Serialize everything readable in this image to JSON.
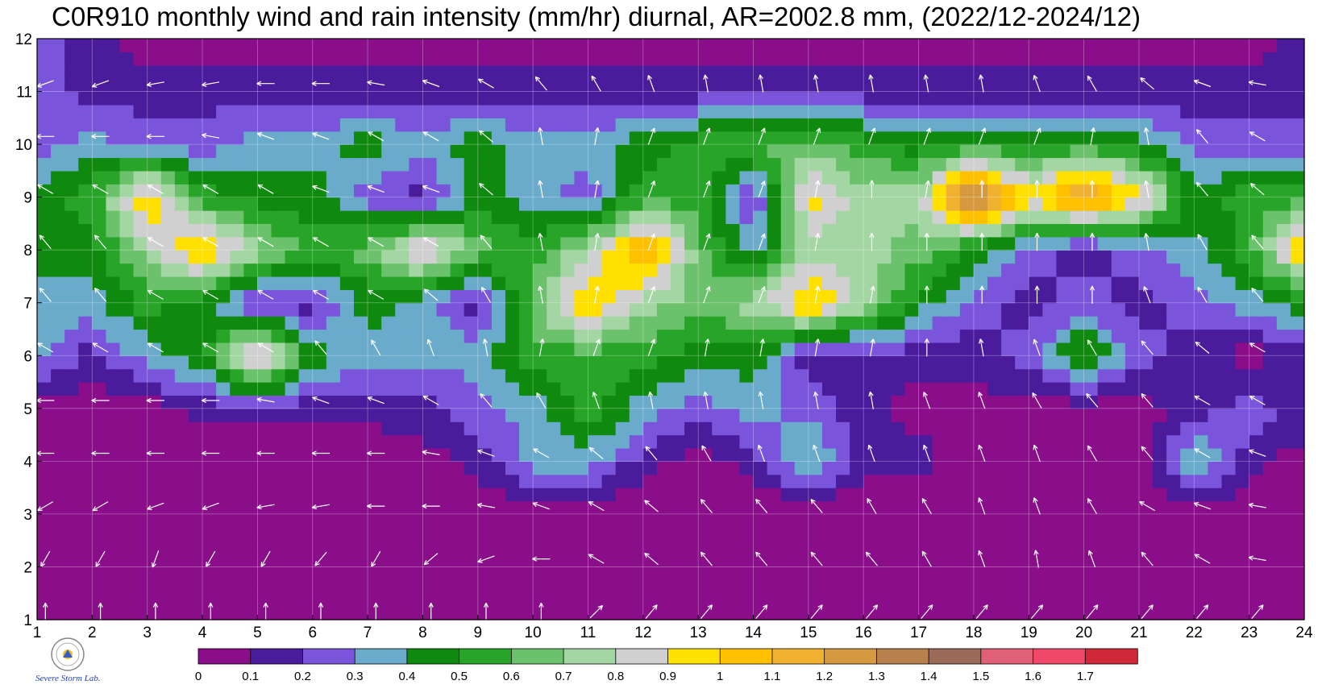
{
  "chart_data": {
    "type": "heatmap",
    "title": "C0R910 monthly wind and rain intensity (mm/hr) diurnal, AR=2002.8 mm, (2022/12-2024/12)",
    "xlabel": "",
    "ylabel": "",
    "x_range": [
      1,
      24
    ],
    "y_range": [
      1,
      12
    ],
    "x_ticks": [
      1,
      2,
      3,
      4,
      5,
      6,
      7,
      8,
      9,
      10,
      11,
      12,
      13,
      14,
      15,
      16,
      17,
      18,
      19,
      20,
      21,
      22,
      23,
      24
    ],
    "y_ticks": [
      1,
      2,
      3,
      4,
      5,
      6,
      7,
      8,
      9,
      10,
      11,
      12
    ],
    "grid": true,
    "colorbar": {
      "position": "bottom",
      "levels": [
        "0",
        "0.1",
        "0.2",
        "0.3",
        "0.4",
        "0.5",
        "0.6",
        "0.7",
        "0.8",
        "0.9",
        "1",
        "1.1",
        "1.2",
        "1.3",
        "1.4",
        "1.5",
        "1.6",
        "1.7"
      ],
      "colors": [
        "#8a0e8a",
        "#4a1c9c",
        "#7a55dc",
        "#6aabcc",
        "#0f8a0f",
        "#28a428",
        "#6cc26c",
        "#a4d6a4",
        "#d0d0d0",
        "#ffe000",
        "#ffc000",
        "#f0b030",
        "#d59a40",
        "#b8804c",
        "#9c6a58",
        "#e06078",
        "#f04868",
        "#d02838"
      ]
    },
    "rain_intensity": [
      [
        0.0,
        0.0,
        0.0,
        0.0,
        0.0,
        0.0,
        0.0,
        0.0,
        0.0,
        0.0,
        0.0,
        0.0,
        0.0,
        0.0,
        0.0,
        0.0,
        0.0,
        0.0,
        0.0,
        0.0,
        0.0,
        0.0,
        0.0,
        0.0
      ],
      [
        0.0,
        0.0,
        0.0,
        0.0,
        0.0,
        0.0,
        0.0,
        0.0,
        0.0,
        0.0,
        0.0,
        0.0,
        0.0,
        0.0,
        0.0,
        0.0,
        0.0,
        0.0,
        0.0,
        0.0,
        0.0,
        0.0,
        0.0,
        0.0
      ],
      [
        0.0,
        0.0,
        0.0,
        0.0,
        0.0,
        0.0,
        0.0,
        0.0,
        0.0,
        0.05,
        0.0,
        0.0,
        0.0,
        0.0,
        0.0,
        0.0,
        0.0,
        0.0,
        0.0,
        0.0,
        0.0,
        0.05,
        0.0,
        0.0
      ],
      [
        0.0,
        0.0,
        0.0,
        0.0,
        0.0,
        0.0,
        0.0,
        0.05,
        0.15,
        0.35,
        0.35,
        0.15,
        0.05,
        0.15,
        0.45,
        0.15,
        0.15,
        0.0,
        0.0,
        0.0,
        0.0,
        0.45,
        0.15,
        0.05
      ],
      [
        0.05,
        0.05,
        0.05,
        0.15,
        0.15,
        0.15,
        0.15,
        0.15,
        0.25,
        0.35,
        0.55,
        0.35,
        0.25,
        0.35,
        0.25,
        0.15,
        0.05,
        0.05,
        0.05,
        0.05,
        0.05,
        0.15,
        0.25,
        0.15
      ],
      [
        0.35,
        0.15,
        0.35,
        0.45,
        1.05,
        0.45,
        0.35,
        0.35,
        0.35,
        0.55,
        0.55,
        0.55,
        0.45,
        0.45,
        0.15,
        0.15,
        0.15,
        0.15,
        0.25,
        0.55,
        0.25,
        0.15,
        0.05,
        0.15
      ],
      [
        0.35,
        0.35,
        0.55,
        0.45,
        0.15,
        0.15,
        0.45,
        0.35,
        0.15,
        0.65,
        1.05,
        0.75,
        0.65,
        0.75,
        1.05,
        0.75,
        0.45,
        0.25,
        0.15,
        0.25,
        0.15,
        0.25,
        0.35,
        0.45
      ],
      [
        0.45,
        0.45,
        0.75,
        1.05,
        0.75,
        0.55,
        0.65,
        0.95,
        0.65,
        0.55,
        0.75,
        1.15,
        0.65,
        0.35,
        0.75,
        0.75,
        0.65,
        0.45,
        0.25,
        0.15,
        0.25,
        0.35,
        0.55,
        1.05
      ],
      [
        0.45,
        0.55,
        1.05,
        0.55,
        0.45,
        0.45,
        0.25,
        0.15,
        0.45,
        0.35,
        0.25,
        0.55,
        0.55,
        0.15,
        0.95,
        0.75,
        0.75,
        1.45,
        0.95,
        1.25,
        0.95,
        0.45,
        0.55,
        0.55
      ],
      [
        0.25,
        0.35,
        0.25,
        0.25,
        0.35,
        0.35,
        0.45,
        0.35,
        0.45,
        0.35,
        0.35,
        0.45,
        0.55,
        0.65,
        0.65,
        0.55,
        0.45,
        0.55,
        0.45,
        0.55,
        0.45,
        0.25,
        0.25,
        0.25
      ],
      [
        0.25,
        0.15,
        0.15,
        0.15,
        0.15,
        0.15,
        0.15,
        0.15,
        0.15,
        0.15,
        0.15,
        0.15,
        0.15,
        0.15,
        0.15,
        0.15,
        0.15,
        0.15,
        0.15,
        0.15,
        0.15,
        0.15,
        0.15,
        0.15
      ],
      [
        0.25,
        0.15,
        0.05,
        0.05,
        0.05,
        0.05,
        0.05,
        0.05,
        0.05,
        0.05,
        0.05,
        0.05,
        0.05,
        0.05,
        0.05,
        0.05,
        0.05,
        0.05,
        0.05,
        0.05,
        0.05,
        0.05,
        0.05,
        0.15
      ]
    ],
    "wind_direction_deg": [
      [
        0,
        0,
        0,
        0,
        0,
        0,
        0,
        0,
        0,
        0,
        45,
        40,
        40,
        40,
        40,
        40,
        40,
        40,
        40,
        40,
        40,
        40,
        40,
        40
      ],
      [
        210,
        210,
        200,
        210,
        210,
        220,
        210,
        230,
        250,
        270,
        300,
        310,
        320,
        320,
        320,
        320,
        330,
        340,
        350,
        340,
        320,
        300,
        280,
        260
      ],
      [
        240,
        240,
        250,
        250,
        260,
        260,
        270,
        270,
        280,
        290,
        300,
        310,
        320,
        320,
        320,
        330,
        330,
        340,
        340,
        330,
        300,
        290,
        280,
        260
      ],
      [
        270,
        270,
        270,
        270,
        270,
        270,
        270,
        280,
        290,
        300,
        310,
        320,
        330,
        340,
        340,
        340,
        340,
        340,
        340,
        330,
        320,
        300,
        290,
        280
      ],
      [
        270,
        270,
        270,
        270,
        280,
        290,
        290,
        300,
        320,
        330,
        340,
        350,
        350,
        350,
        350,
        350,
        340,
        340,
        330,
        320,
        320,
        300,
        300,
        300
      ],
      [
        300,
        300,
        300,
        300,
        300,
        320,
        330,
        340,
        350,
        10,
        20,
        20,
        10,
        10,
        10,
        10,
        0,
        350,
        340,
        330,
        320,
        310,
        300,
        300
      ],
      [
        320,
        320,
        300,
        300,
        300,
        300,
        300,
        310,
        330,
        350,
        10,
        20,
        20,
        20,
        10,
        10,
        0,
        0,
        0,
        0,
        340,
        330,
        320,
        310
      ],
      [
        320,
        320,
        300,
        300,
        300,
        300,
        300,
        300,
        320,
        350,
        10,
        20,
        20,
        20,
        10,
        0,
        0,
        0,
        0,
        0,
        350,
        330,
        320,
        310
      ],
      [
        300,
        300,
        300,
        300,
        300,
        290,
        290,
        290,
        310,
        350,
        10,
        20,
        20,
        20,
        10,
        0,
        10,
        0,
        0,
        0,
        350,
        320,
        310,
        300
      ],
      [
        270,
        270,
        270,
        280,
        290,
        290,
        300,
        300,
        310,
        350,
        10,
        20,
        20,
        20,
        20,
        20,
        20,
        20,
        20,
        10,
        350,
        320,
        300,
        290
      ],
      [
        250,
        250,
        260,
        260,
        270,
        270,
        280,
        290,
        300,
        320,
        330,
        340,
        350,
        350,
        350,
        350,
        350,
        350,
        340,
        330,
        310,
        290,
        280,
        270
      ],
      [
        210,
        210,
        210,
        210,
        220,
        220,
        230,
        230,
        240,
        250,
        260,
        270,
        280,
        290,
        290,
        300,
        300,
        300,
        300,
        290,
        280,
        270,
        240,
        220
      ]
    ],
    "wind_color": "#ffffff"
  },
  "logo": {
    "text": "Severe Storm Lab."
  }
}
